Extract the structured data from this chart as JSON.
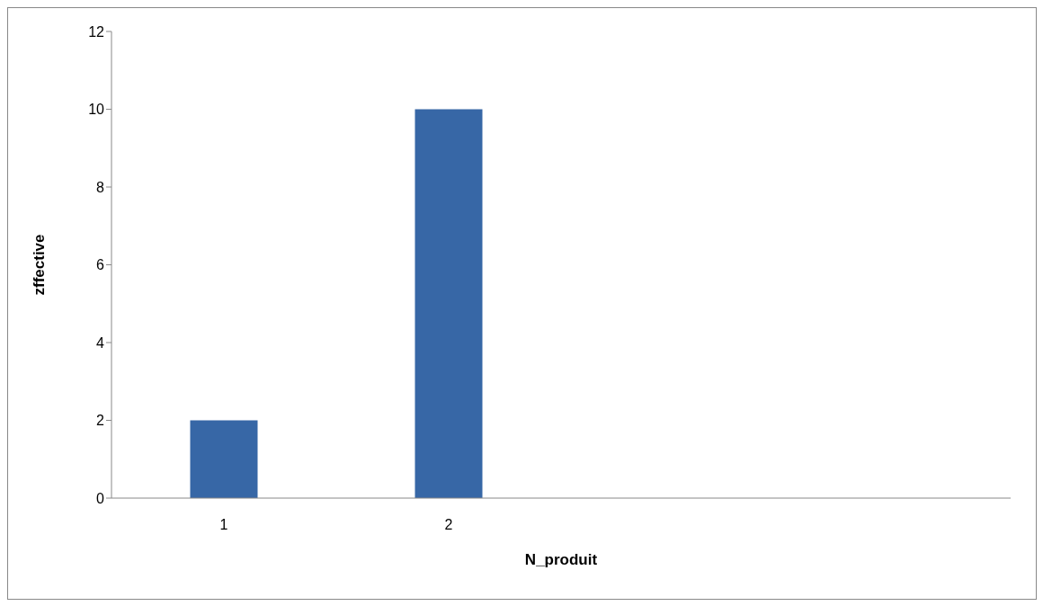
{
  "chart_data": {
    "type": "bar",
    "xlabel": "N_produit",
    "ylabel": "zffective",
    "categories": [
      "1",
      "2",
      null,
      null
    ],
    "values": [
      2,
      10,
      null,
      null
    ],
    "color": "#3767a6",
    "ylim": [
      0,
      12
    ],
    "yticks": [
      0,
      2,
      4,
      6,
      8,
      10,
      12
    ],
    "grid": false
  }
}
